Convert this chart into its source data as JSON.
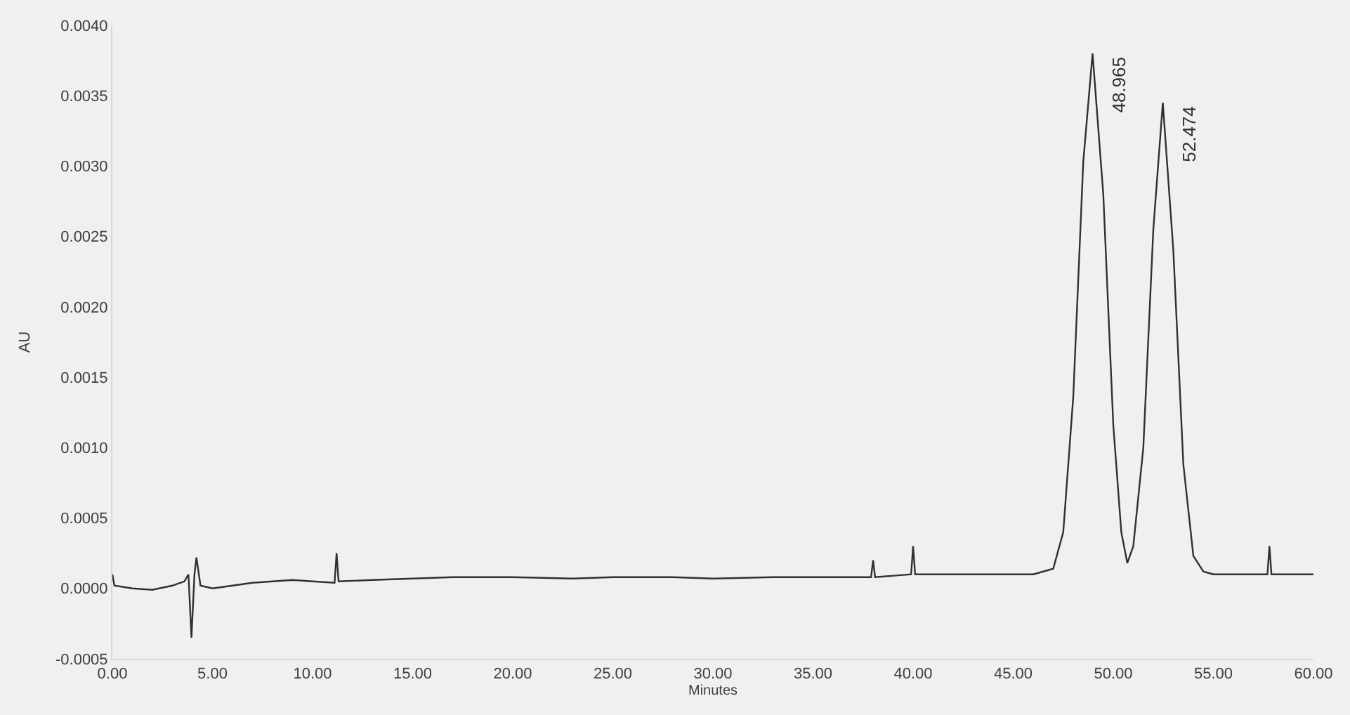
{
  "chart_data": {
    "type": "line",
    "xlabel": "Minutes",
    "ylabel": "AU",
    "series": [
      {
        "color": "#303030",
        "x": [
          0,
          0.1,
          1,
          2,
          3,
          3.6,
          3.8,
          3.95,
          4.1,
          4.2,
          4.4,
          5,
          6,
          7,
          8,
          9,
          10,
          11.1,
          11.2,
          11.3,
          13,
          15,
          17,
          20,
          23,
          25,
          28,
          30,
          33,
          35,
          37.9,
          38,
          38.1,
          39.9,
          40,
          40.1,
          43,
          46,
          47,
          47.5,
          48,
          48.5,
          48.965,
          49.5,
          50,
          50.4,
          50.7,
          51,
          51.5,
          52,
          52.474,
          53,
          53.5,
          54,
          54.5,
          55,
          57.7,
          57.8,
          57.9,
          60
        ],
        "values": [
          0.0001,
          2e-05,
          0.0,
          -1e-05,
          2e-05,
          5e-05,
          0.0001,
          -0.00035,
          0.0001,
          0.00022,
          2e-05,
          0.0,
          2e-05,
          4e-05,
          5e-05,
          6e-05,
          5e-05,
          4e-05,
          0.00025,
          5e-05,
          6e-05,
          7e-05,
          8e-05,
          8e-05,
          7e-05,
          8e-05,
          8e-05,
          7e-05,
          8e-05,
          8e-05,
          8e-05,
          0.0002,
          8e-05,
          0.0001,
          0.0003,
          0.0001,
          0.0001,
          0.0001,
          0.00014,
          0.0004,
          0.00136,
          0.00303,
          0.0038,
          0.0028,
          0.00116,
          0.0004,
          0.00018,
          0.0003,
          0.001,
          0.00255,
          0.00345,
          0.0024,
          0.00088,
          0.00023,
          0.00012,
          0.0001,
          0.0001,
          0.0003,
          0.0001,
          0.0001
        ]
      }
    ],
    "annotations": [
      {
        "text": "48.965",
        "x": 48.965,
        "y": 0.0038
      },
      {
        "text": "52.474",
        "x": 52.474,
        "y": 0.00345
      }
    ],
    "xlim": [
      0,
      60
    ],
    "xticks": [
      {
        "value": 0,
        "label": "0.00"
      },
      {
        "value": 5,
        "label": "5.00"
      },
      {
        "value": 10,
        "label": "10.00"
      },
      {
        "value": 15,
        "label": "15.00"
      },
      {
        "value": 20,
        "label": "20.00"
      },
      {
        "value": 25,
        "label": "25.00"
      },
      {
        "value": 30,
        "label": "30.00"
      },
      {
        "value": 35,
        "label": "35.00"
      },
      {
        "value": 40,
        "label": "40.00"
      },
      {
        "value": 45,
        "label": "45.00"
      },
      {
        "value": 50,
        "label": "50.00"
      },
      {
        "value": 55,
        "label": "55.00"
      },
      {
        "value": 60,
        "label": "60.00"
      }
    ],
    "ylim": [
      -0.0005,
      0.004
    ],
    "yticks": [
      {
        "value": -0.0005,
        "label": "-0.0005"
      },
      {
        "value": 0,
        "label": "0.0000"
      },
      {
        "value": 0.0005,
        "label": "0.0005"
      },
      {
        "value": 0.001,
        "label": "0.0010"
      },
      {
        "value": 0.0015,
        "label": "0.0015"
      },
      {
        "value": 0.002,
        "label": "0.0020"
      },
      {
        "value": 0.0025,
        "label": "0.0025"
      },
      {
        "value": 0.003,
        "label": "0.0030"
      },
      {
        "value": 0.0035,
        "label": "0.0035"
      },
      {
        "value": 0.004,
        "label": "0.0040"
      }
    ],
    "grid": false,
    "marker": "none",
    "line_style": "solid"
  }
}
